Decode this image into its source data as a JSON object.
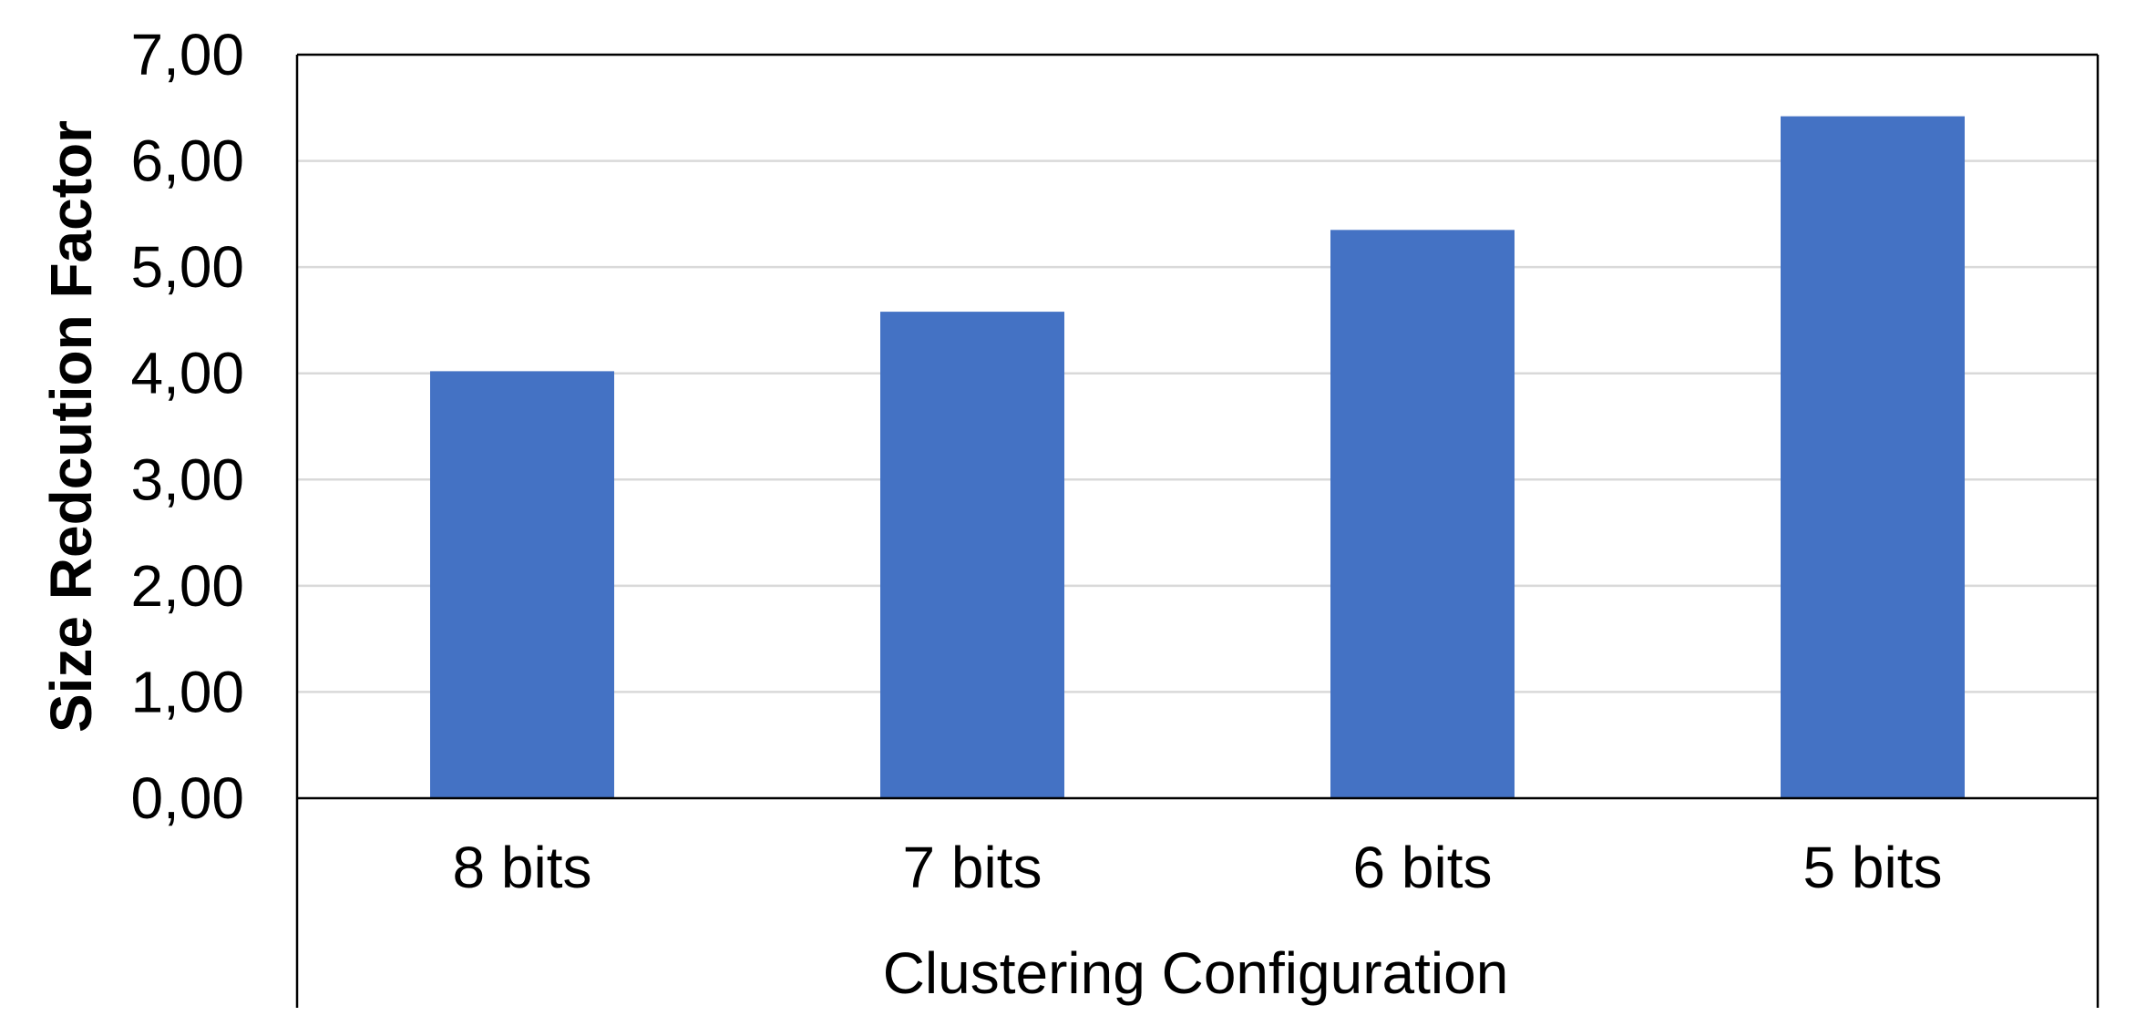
{
  "chart_data": {
    "type": "bar",
    "categories": [
      "8 bits",
      "7 bits",
      "6 bits",
      "5 bits"
    ],
    "values": [
      4.02,
      4.58,
      5.35,
      6.42
    ],
    "title": "",
    "xlabel": "Clustering Configuration",
    "ylabel": "Size Redcution Factor",
    "ylim": [
      0,
      7
    ],
    "yticks": [
      "0,00",
      "1,00",
      "2,00",
      "3,00",
      "4,00",
      "5,00",
      "6,00",
      "7,00"
    ],
    "grid": true,
    "legend": "none",
    "colors": {
      "bar": "#4472C4",
      "grid": "#D9D9D9",
      "axis": "#000000"
    }
  }
}
